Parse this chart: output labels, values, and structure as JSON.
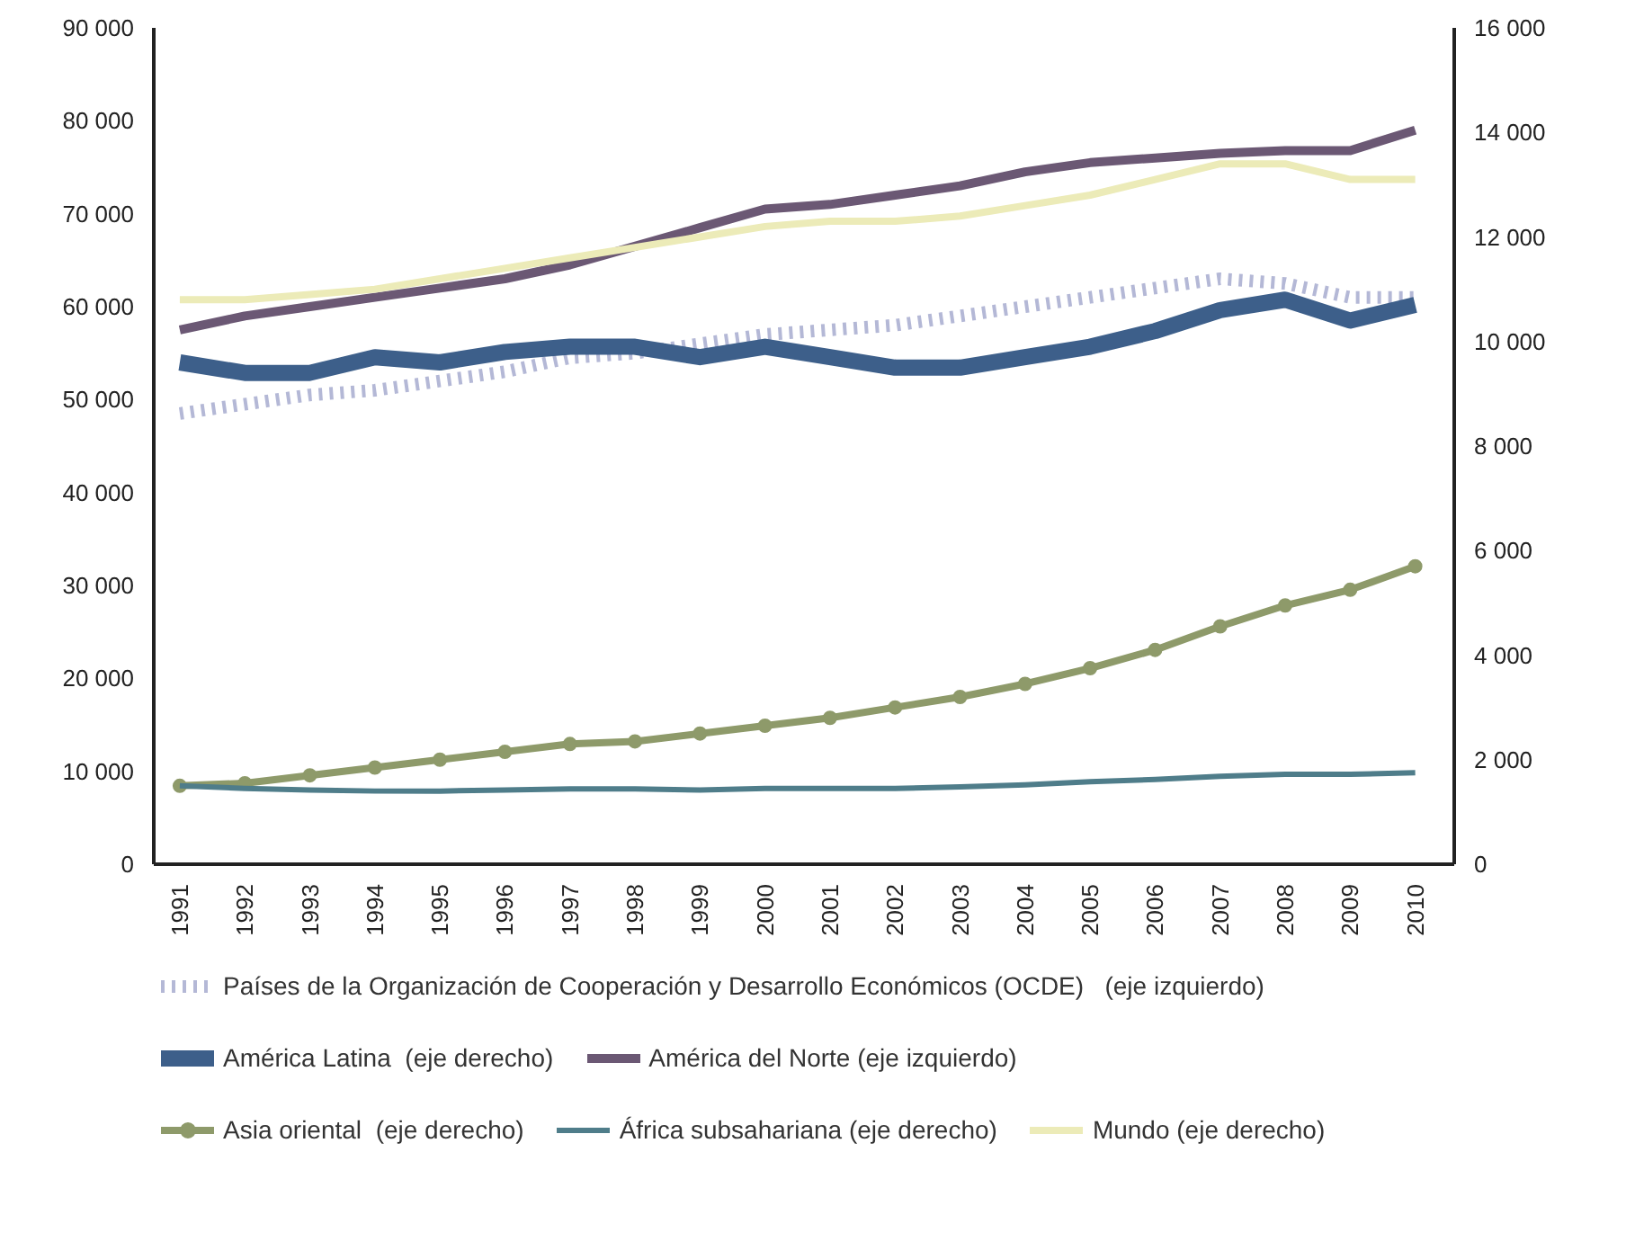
{
  "chart_data": {
    "type": "line",
    "x": [
      1991,
      1992,
      1993,
      1994,
      1995,
      1996,
      1997,
      1998,
      1999,
      2000,
      2001,
      2002,
      2003,
      2004,
      2005,
      2006,
      2007,
      2008,
      2009,
      2010
    ],
    "xlim": [
      1990.6,
      2010.6
    ],
    "xticks": [
      1991,
      1992,
      1993,
      1994,
      1995,
      1996,
      1997,
      1998,
      1999,
      2000,
      2001,
      2002,
      2003,
      2004,
      2005,
      2006,
      2007,
      2008,
      2009,
      2010
    ],
    "ylim": [
      0,
      90000
    ],
    "yticks": [
      {
        "value": 0,
        "label": "0"
      },
      {
        "value": 10000,
        "label": "10 000"
      },
      {
        "value": 20000,
        "label": "20 000"
      },
      {
        "value": 30000,
        "label": "30 000"
      },
      {
        "value": 40000,
        "label": "40 000"
      },
      {
        "value": 50000,
        "label": "50 000"
      },
      {
        "value": 60000,
        "label": "60 000"
      },
      {
        "value": 70000,
        "label": "70 000"
      },
      {
        "value": 80000,
        "label": "80 000"
      },
      {
        "value": 90000,
        "label": "90 000"
      }
    ],
    "y2lim": [
      0,
      16000
    ],
    "y2ticks": [
      {
        "value": 0,
        "label": "0"
      },
      {
        "value": 2000,
        "label": "2 000"
      },
      {
        "value": 4000,
        "label": "4 000"
      },
      {
        "value": 6000,
        "label": "6 000"
      },
      {
        "value": 8000,
        "label": "8 000"
      },
      {
        "value": 10000,
        "label": "10 000"
      },
      {
        "value": 12000,
        "label": "12 000"
      },
      {
        "value": 14000,
        "label": "14 000"
      },
      {
        "value": 16000,
        "label": "16 000"
      }
    ],
    "grid": false,
    "legend": "bottom",
    "series": [
      {
        "name": "Países de la Organización de Cooperación y Desarrollo Económicos (OCDE)   (eje izquierdo)",
        "color": "#b4b8d6",
        "line_style": "dotted",
        "values": [
          48500,
          49500,
          50500,
          51000,
          52000,
          53000,
          54500,
          55000,
          56000,
          57000,
          57500,
          58000,
          59000,
          60000,
          61000,
          62000,
          63000,
          62500,
          61000,
          61000
        ]
      },
      {
        "name": "América Latina  (eje derecho)",
        "color": "#3d5f8a",
        "axis": "y2",
        "values": [
          9600,
          9400,
          9400,
          9700,
          9600,
          9800,
          9900,
          9900,
          9700,
          9900,
          9700,
          9500,
          9500,
          9700,
          9900,
          10200,
          10600,
          10800,
          10400,
          10700
        ]
      },
      {
        "name": "América del Norte (eje izquierdo)",
        "color": "#6b5874",
        "values": [
          57500,
          59000,
          60000,
          61000,
          62000,
          63000,
          64500,
          66500,
          68500,
          70500,
          71000,
          72000,
          73000,
          74500,
          75500,
          76000,
          76500,
          76800,
          76800,
          79000
        ]
      },
      {
        "name": "Asia oriental  (eje derecho)",
        "color": "#8e9a6a",
        "axis": "y2",
        "marker": "circle",
        "values": [
          1500,
          1550,
          1700,
          1850,
          2000,
          2150,
          2300,
          2350,
          2500,
          2650,
          2800,
          3000,
          3200,
          3450,
          3750,
          4100,
          4550,
          4950,
          5250,
          5700
        ]
      },
      {
        "name": "África subsahariana (eje derecho)",
        "color": "#4f7d8a",
        "axis": "y2",
        "values": [
          1500,
          1450,
          1420,
          1400,
          1400,
          1420,
          1440,
          1440,
          1420,
          1450,
          1450,
          1450,
          1480,
          1520,
          1580,
          1620,
          1680,
          1720,
          1720,
          1750
        ]
      },
      {
        "name": "Mundo (eje derecho)",
        "color": "#ecebb8",
        "axis": "y2",
        "values": [
          10800,
          10800,
          10900,
          11000,
          11200,
          11400,
          11600,
          11800,
          12000,
          12200,
          12300,
          12300,
          12400,
          12600,
          12800,
          13100,
          13400,
          13400,
          13100,
          13100
        ]
      }
    ]
  }
}
